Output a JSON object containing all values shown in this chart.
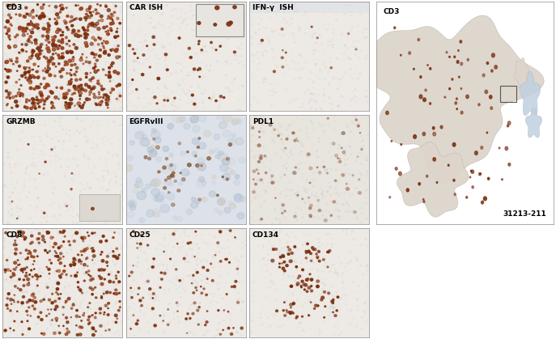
{
  "panels_row1": [
    "CD3",
    "CAR ISH",
    "IFN-γ  ISH"
  ],
  "panels_row2": [
    "GRZMB",
    "EGFRvIII",
    "PDL1"
  ],
  "panels_row3": [
    "CD8",
    "CD25",
    "CD134"
  ],
  "large_panel_label": "CD3",
  "large_panel_id": "31213-211",
  "bg_color": "#ffffff",
  "label_fontsize": 6.5,
  "id_fontsize": 6.5,
  "figure_width": 6.87,
  "figure_height": 4.19,
  "panel_bg": "#ede9e4",
  "panel_bg_blue": "#dde2ea",
  "dot_brown": "#7B3010",
  "dot_brown2": "#A04020",
  "cell_blue": "#b8c8d8",
  "cell_tan": "#c8b8a8"
}
